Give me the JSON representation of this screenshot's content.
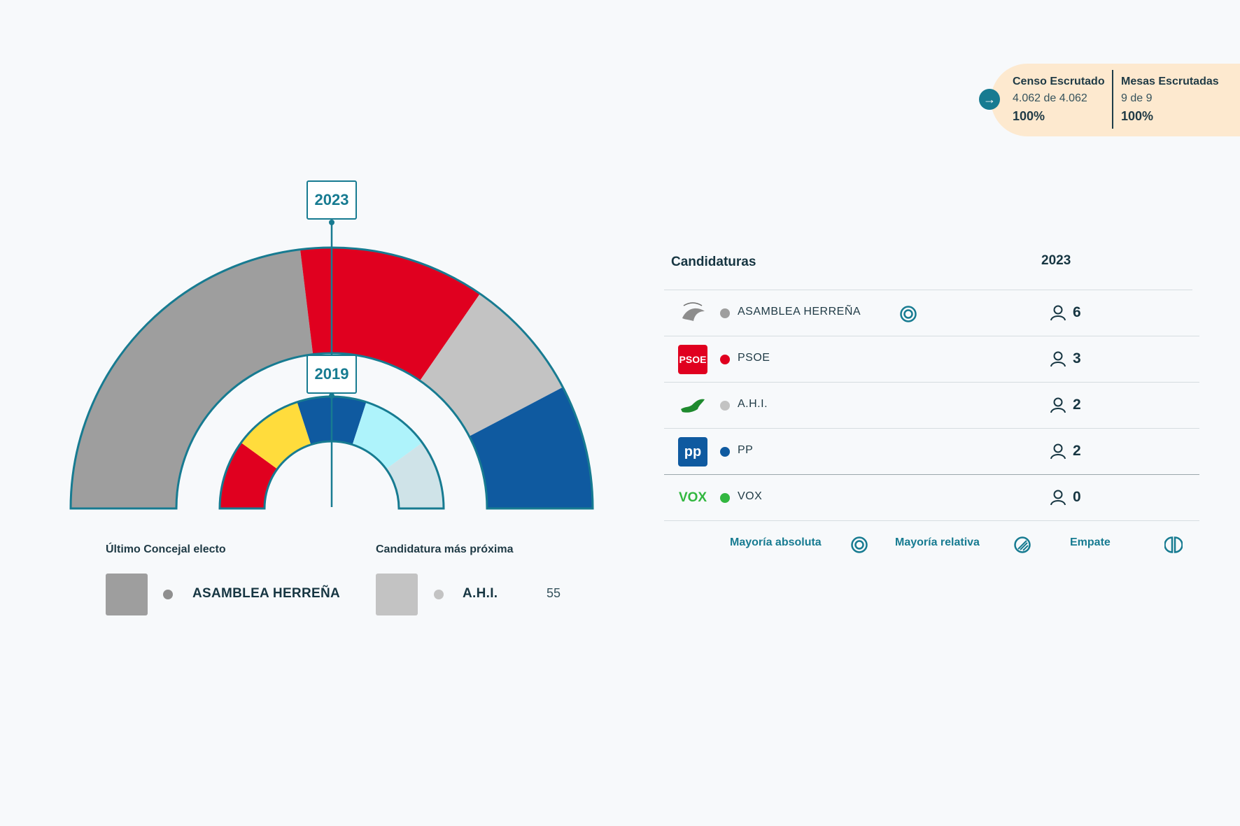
{
  "census": {
    "censo_title": "Censo Escrutado",
    "censo_value": "4.062 de 4.062",
    "censo_pct": "100%",
    "mesas_title": "Mesas Escrutadas",
    "mesas_value": "9 de 9",
    "mesas_pct": "100%",
    "go_icon": "arrow-right-icon"
  },
  "colors": {
    "accent": "#177b91",
    "asamblea_herrena": "#9e9e9e",
    "psoe": "#e0001f",
    "ahi": "#c3c3c3",
    "pp": "#0f5aa0",
    "vox": "#32b740",
    "cc": "#ffdc3c",
    "light_cyan": "#aef3fb",
    "light_grey_blue": "#cfe3e8"
  },
  "chart_data": {
    "type": "parliament",
    "series": [
      {
        "name": "2023",
        "segments": [
          {
            "party": "ASAMBLEA HERREÑA",
            "seats": 6,
            "color": "#9e9e9e"
          },
          {
            "party": "PSOE",
            "seats": 3,
            "color": "#e0001f"
          },
          {
            "party": "A.H.I.",
            "seats": 2,
            "color": "#c3c3c3"
          },
          {
            "party": "PP",
            "seats": 2,
            "color": "#0f5aa0"
          }
        ]
      },
      {
        "name": "2019",
        "segments": [
          {
            "seats": 2,
            "color": "#e0001f"
          },
          {
            "seats": 2,
            "color": "#ffdc3c"
          },
          {
            "seats": 2,
            "color": "#0f5aa0"
          },
          {
            "seats": 2,
            "color": "#aef3fb"
          },
          {
            "seats": 2,
            "color": "#cfe3e8"
          }
        ]
      }
    ]
  },
  "info": {
    "last_title": "Último Concejal electo",
    "last_party": "ASAMBLEA HERREÑA",
    "next_title": "Candidatura más próxima",
    "next_party": "A.H.I.",
    "next_votes": "55"
  },
  "table": {
    "header_candidaturas": "Candidaturas",
    "header_year": "2023",
    "rows": [
      {
        "name": "ASAMBLEA HERREÑA",
        "seats": "6",
        "color": "#9e9e9e",
        "logo_icon": "asamblea-herrena-logo-icon",
        "majority": "absolute"
      },
      {
        "name": "PSOE",
        "seats": "3",
        "color": "#e0001f",
        "logo_text": "PSOE"
      },
      {
        "name": "A.H.I.",
        "seats": "2",
        "color": "#c3c3c3",
        "logo_icon": "ahi-island-logo-icon"
      },
      {
        "name": "PP",
        "seats": "2",
        "color": "#0f5aa0",
        "logo_text": "pp"
      },
      {
        "name": "VOX",
        "seats": "0",
        "color": "#32b740",
        "logo_text": "VOX"
      }
    ]
  },
  "legend": {
    "absolute": "Mayoría absoluta",
    "relative": "Mayoría relativa",
    "tie": "Empate"
  }
}
